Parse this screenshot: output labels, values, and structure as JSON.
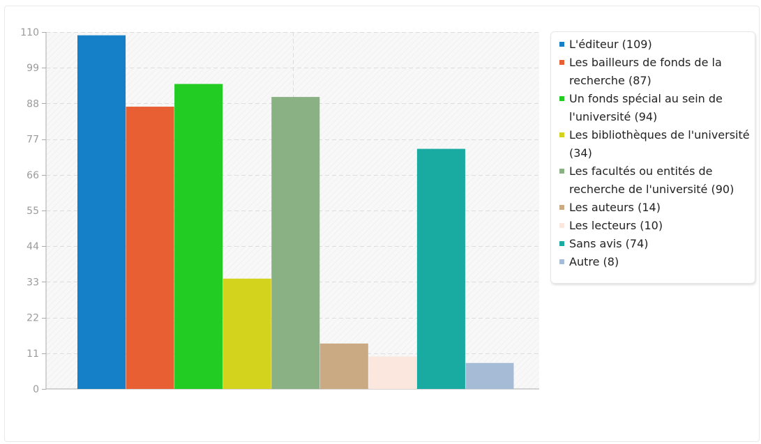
{
  "chart_data": {
    "type": "bar",
    "title": "",
    "xlabel": "",
    "ylabel": "",
    "ylim": [
      0,
      110
    ],
    "yticks": [
      0,
      11,
      22,
      33,
      44,
      55,
      66,
      77,
      88,
      99,
      110
    ],
    "grid": true,
    "legend_position": "right",
    "series": [
      {
        "label": "L'éditeur (109)",
        "value": 109,
        "color": "#1580c8"
      },
      {
        "label": "Les bailleurs de fonds de la recherche (87)",
        "value": 87,
        "color": "#e85f33"
      },
      {
        "label": "Un fonds spécial au sein de l'université (94)",
        "value": 94,
        "color": "#22cc22"
      },
      {
        "label": "Les bibliothèques de l'université (34)",
        "value": 34,
        "color": "#d3d31e"
      },
      {
        "label": "Les facultés ou entités de recherche de l'université (90)",
        "value": 90,
        "color": "#89b183"
      },
      {
        "label": "Les auteurs (14)",
        "value": 14,
        "color": "#c9aa82"
      },
      {
        "label": "Les lecteurs (10)",
        "value": 10,
        "color": "#fbe7de"
      },
      {
        "label": "Sans avis (74)",
        "value": 74,
        "color": "#19aaa2"
      },
      {
        "label": "Autre (8)",
        "value": 8,
        "color": "#a6bbd6"
      }
    ]
  }
}
